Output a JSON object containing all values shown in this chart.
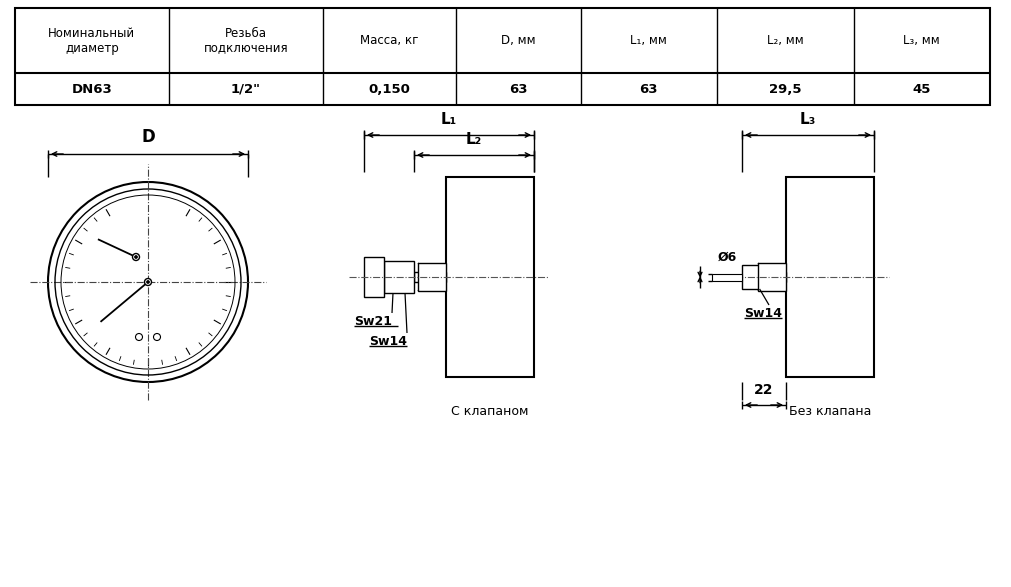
{
  "bg_color": "#ffffff",
  "line_color": "#000000",
  "table_headers": [
    "Номинальный\nдиаметр",
    "Резьба\nподключения",
    "Масса, кг",
    "D, мм",
    "L₁, мм",
    "L₂, мм",
    "L₃, мм"
  ],
  "table_values": [
    "DN63",
    "1/2\"",
    "0,150",
    "63",
    "63",
    "29,5",
    "45"
  ],
  "label_caption1": "С клапаном",
  "label_caption2": "Без клапана",
  "sw21_label": "Sw21",
  "sw14_label1": "Sw14",
  "sw14_label2": "Sw14",
  "d6_label": "Ø6",
  "dim22_label": "22",
  "L1_label": "L₁",
  "L2_label": "L₂",
  "L3_label": "L₃",
  "D_label": "D"
}
